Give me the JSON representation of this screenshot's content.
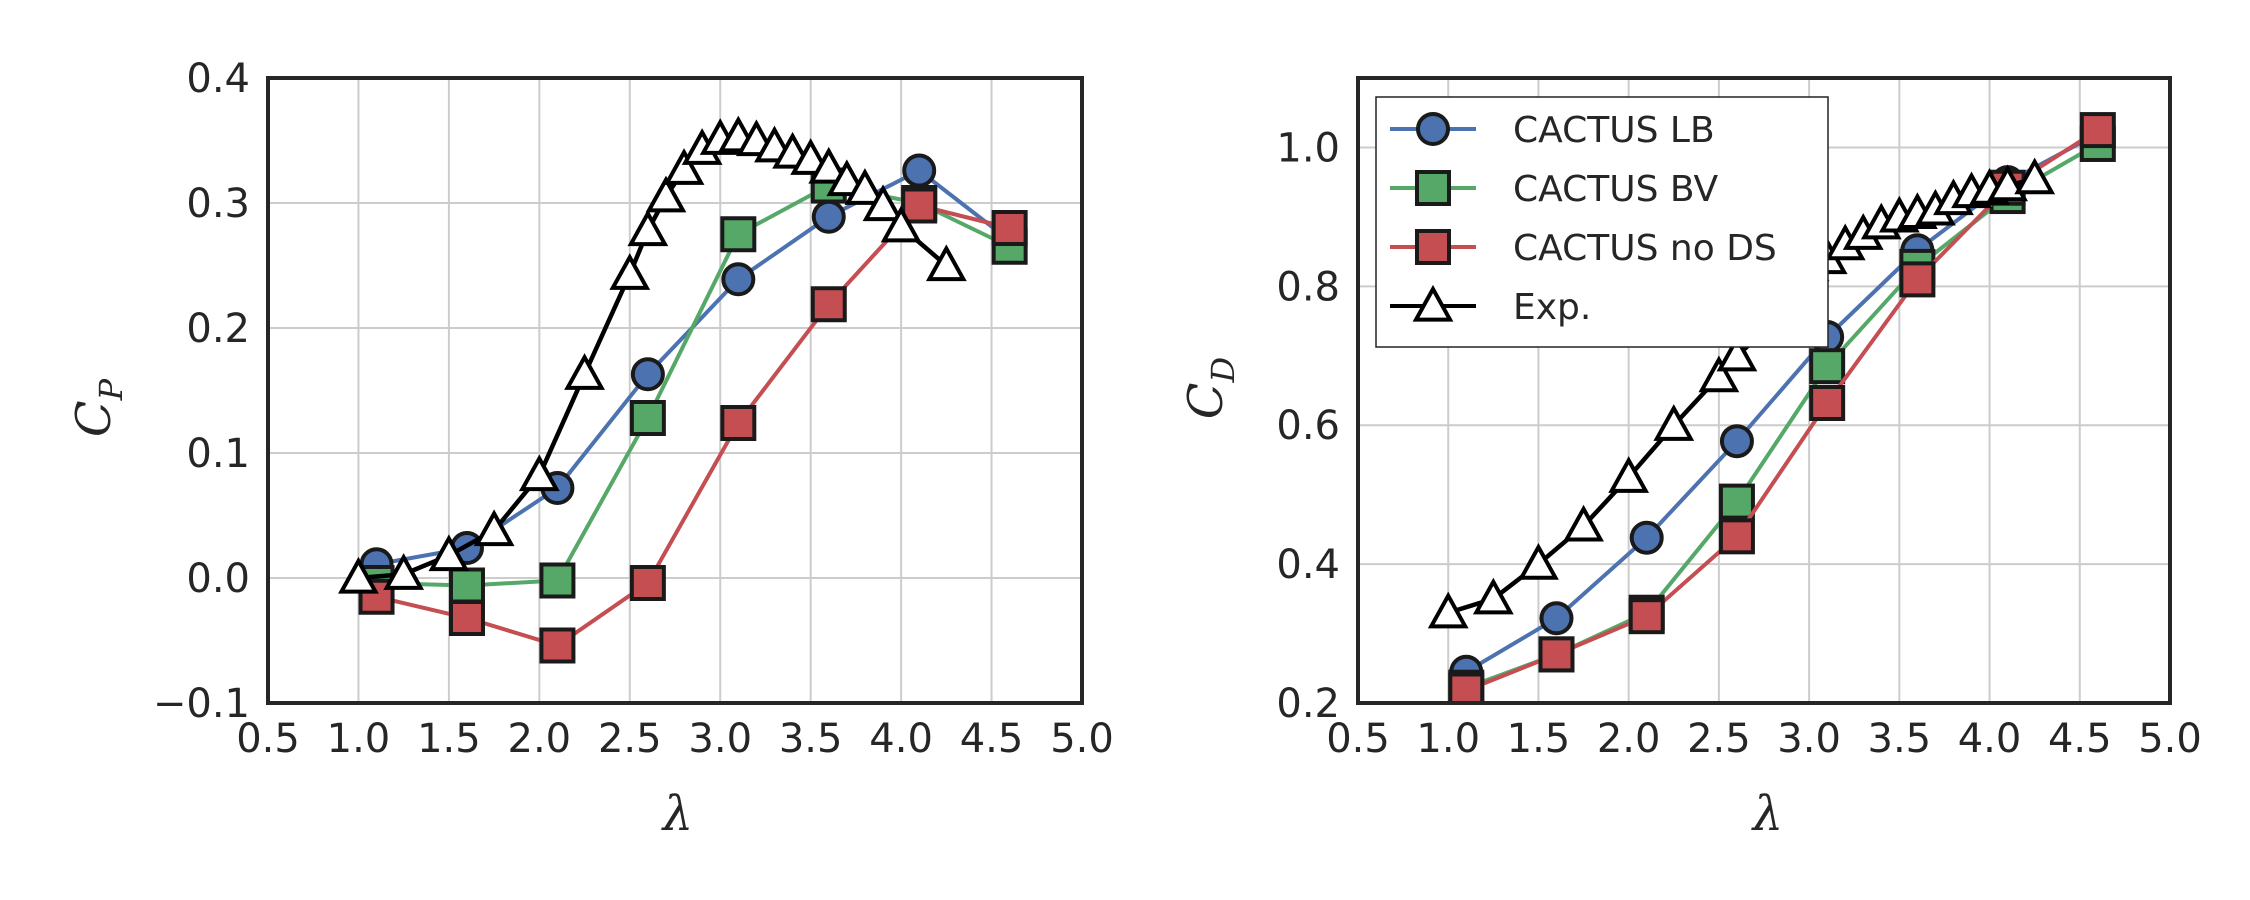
{
  "chart_data": [
    {
      "type": "line",
      "ylabel": "C",
      "ylabel_sub": "P",
      "xlabel": "λ",
      "xlim": [
        0.5,
        5.0
      ],
      "ylim": [
        -0.1,
        0.4
      ],
      "xticks": [
        "0.5",
        "1.0",
        "1.5",
        "2.0",
        "2.5",
        "3.0",
        "3.5",
        "4.0",
        "4.5",
        "5.0"
      ],
      "yticks": [
        "−0.1",
        "0.0",
        "0.1",
        "0.2",
        "0.3",
        "0.4"
      ],
      "grid": true,
      "series": [
        {
          "name": "CACTUS LB",
          "color": "#4c72b0",
          "marker": "circle",
          "x": [
            1.1,
            1.6,
            2.1,
            2.6,
            3.1,
            3.6,
            4.1,
            4.6
          ],
          "y": [
            0.011,
            0.024,
            0.072,
            0.163,
            0.239,
            0.289,
            0.326,
            0.27
          ]
        },
        {
          "name": "CACTUS BV",
          "color": "#55a868",
          "marker": "square",
          "x": [
            1.1,
            1.6,
            2.1,
            2.6,
            3.1,
            3.6,
            4.1,
            4.6
          ],
          "y": [
            -0.004,
            -0.006,
            -0.002,
            0.128,
            0.275,
            0.314,
            0.3,
            0.265
          ]
        },
        {
          "name": "CACTUS no DS",
          "color": "#c44e52",
          "marker": "square",
          "x": [
            1.1,
            1.6,
            2.1,
            2.6,
            3.1,
            3.6,
            4.1,
            4.6
          ],
          "y": [
            -0.015,
            -0.032,
            -0.054,
            -0.004,
            0.124,
            0.219,
            0.298,
            0.28
          ]
        },
        {
          "name": "Exp.",
          "color": "#000000",
          "marker": "triangle",
          "x": [
            1.0,
            1.25,
            1.5,
            1.75,
            2.0,
            2.25,
            2.5,
            2.6,
            2.7,
            2.8,
            2.9,
            3.0,
            3.1,
            3.2,
            3.3,
            3.4,
            3.5,
            3.6,
            3.7,
            3.8,
            3.9,
            4.0,
            4.25
          ],
          "y": [
            0.0,
            0.003,
            0.018,
            0.038,
            0.082,
            0.163,
            0.243,
            0.278,
            0.305,
            0.327,
            0.343,
            0.351,
            0.353,
            0.35,
            0.345,
            0.34,
            0.335,
            0.328,
            0.318,
            0.311,
            0.298,
            0.281,
            0.25
          ]
        }
      ]
    },
    {
      "type": "line",
      "ylabel": "C",
      "ylabel_sub": "D",
      "xlabel": "λ",
      "xlim": [
        0.5,
        5.0
      ],
      "ylim": [
        0.2,
        1.1
      ],
      "xticks": [
        "0.5",
        "1.0",
        "1.5",
        "2.0",
        "2.5",
        "3.0",
        "3.5",
        "4.0",
        "4.5",
        "5.0"
      ],
      "yticks": [
        "0.2",
        "0.4",
        "0.6",
        "0.8",
        "1.0"
      ],
      "grid": true,
      "legend": "top-left",
      "series": [
        {
          "name": "CACTUS LB",
          "color": "#4c72b0",
          "marker": "circle",
          "x": [
            1.1,
            1.6,
            2.1,
            2.6,
            3.1,
            3.6,
            4.1,
            4.6
          ],
          "y": [
            0.245,
            0.322,
            0.438,
            0.577,
            0.727,
            0.852,
            0.95,
            1.02
          ]
        },
        {
          "name": "CACTUS BV",
          "color": "#55a868",
          "marker": "square",
          "x": [
            1.1,
            1.6,
            2.1,
            2.6,
            3.1,
            3.6,
            4.1,
            4.6
          ],
          "y": [
            0.222,
            0.27,
            0.33,
            0.49,
            0.685,
            0.828,
            0.93,
            1.005
          ]
        },
        {
          "name": "CACTUS no DS",
          "color": "#c44e52",
          "marker": "square",
          "x": [
            1.1,
            1.6,
            2.1,
            2.6,
            3.1,
            3.6,
            4.1,
            4.6
          ],
          "y": [
            0.218,
            0.27,
            0.325,
            0.44,
            0.632,
            0.81,
            0.942,
            1.025
          ]
        },
        {
          "name": "Exp.",
          "color": "#000000",
          "marker": "triangle",
          "x": [
            1.0,
            1.25,
            1.5,
            1.75,
            2.0,
            2.25,
            2.5,
            2.6,
            2.75,
            3.0,
            3.1,
            3.2,
            3.3,
            3.4,
            3.5,
            3.6,
            3.7,
            3.8,
            3.9,
            4.0,
            4.1,
            4.25
          ],
          "y": [
            0.33,
            0.35,
            0.4,
            0.455,
            0.525,
            0.6,
            0.67,
            0.7,
            0.735,
            0.83,
            0.84,
            0.86,
            0.875,
            0.89,
            0.9,
            0.905,
            0.91,
            0.925,
            0.935,
            0.94,
            0.945,
            0.955
          ]
        }
      ]
    }
  ]
}
